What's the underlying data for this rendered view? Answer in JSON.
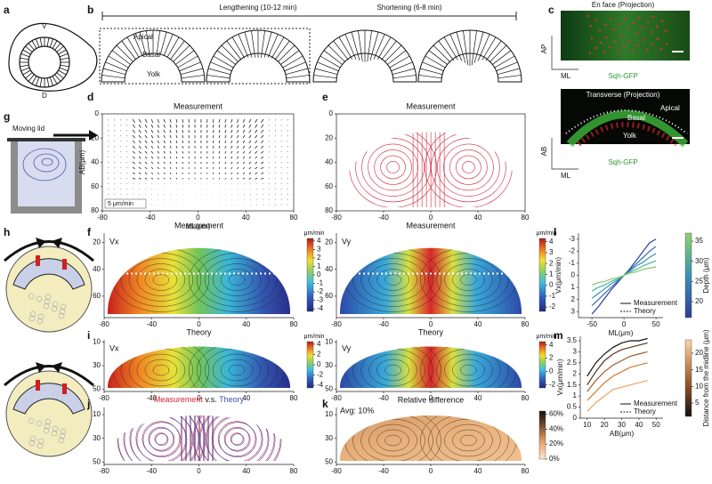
{
  "panel_labels": [
    "a",
    "b",
    "c",
    "d",
    "e",
    "f",
    "g",
    "h",
    "i",
    "j",
    "k",
    "l",
    "m"
  ],
  "a": {
    "top": "V",
    "bottom": "D"
  },
  "b": {
    "lengthening": "Lengthening (10-12 min)",
    "shortening": "Shortening (6-8 min)",
    "apical": "Apical",
    "basal": "Basal",
    "yolk": "Yolk"
  },
  "c": {
    "top_title": "En face (Projection)",
    "bottom_title": "Transverse (Projection)",
    "ap": "AP",
    "ml_top": "ML",
    "ab": "AB",
    "ml_bottom": "ML",
    "stain_top": "Sqh-GFP",
    "stain_bottom": "Sqh-GFP",
    "apical": "Apical",
    "basal": "Basal",
    "yolk": "Yolk"
  },
  "g": {
    "lid": "Moving lid"
  },
  "chart_data": [
    {
      "type": "vector_field",
      "title": "Measurement",
      "xlabel": "ML(μm)",
      "ylabel": "AB(μm)",
      "xlim": [
        -80,
        80
      ],
      "ylim": [
        0,
        80
      ],
      "y_inverted": true,
      "xticks": [
        -80,
        -40,
        0,
        40,
        80
      ],
      "yticks": [
        0,
        20,
        40,
        60,
        80
      ],
      "scale_label": "5 μm/min",
      "color": "#222222",
      "frame": true
    },
    {
      "type": "streamlines",
      "title": "Measurement",
      "xlim": [
        -80,
        80
      ],
      "ylim": [
        0,
        80
      ],
      "y_inverted": true,
      "xticks": [
        -80,
        -40,
        0,
        40,
        80
      ],
      "yticks": [
        0,
        20,
        40,
        60,
        80
      ],
      "color": "#d0243a",
      "frame": true
    },
    {
      "type": "heatmap",
      "title": "Measurement",
      "corner_label": "Vx",
      "xlim": [
        -80,
        80
      ],
      "ylim": [
        13,
        76
      ],
      "y_inverted": true,
      "xticks": [
        -80,
        -40,
        0,
        40,
        80
      ],
      "yticks": [
        20,
        40,
        60
      ],
      "colorbar": {
        "label": "μm/min",
        "lim": [
          -4.3,
          4.3
        ],
        "ticks": [
          4,
          3,
          2,
          1,
          0,
          -1,
          -2,
          -3,
          -4
        ]
      }
    },
    {
      "type": "heatmap",
      "title": "Measurement",
      "corner_label": "Vy",
      "xlim": [
        -80,
        80
      ],
      "ylim": [
        13,
        76
      ],
      "y_inverted": true,
      "xticks": [
        -80,
        -40,
        0,
        40,
        80
      ],
      "yticks": [
        20,
        40,
        60
      ],
      "colorbar": {
        "label": "μm/min",
        "lim": [
          -2.4,
          4.3
        ],
        "ticks": [
          4,
          3,
          2,
          1,
          0,
          -1,
          -2
        ]
      }
    },
    {
      "type": "heatmap",
      "title": "Theory",
      "corner_label": "Vx",
      "xlim": [
        -80,
        80
      ],
      "ylim": [
        8,
        52
      ],
      "y_inverted": true,
      "xticks": [
        -80,
        -40,
        0,
        40,
        80
      ],
      "yticks": [
        10,
        30,
        50
      ],
      "colorbar": {
        "label": "μm/min",
        "lim": [
          -4.5,
          4.5
        ],
        "ticks": [
          4,
          2,
          0,
          -2,
          -4
        ]
      }
    },
    {
      "type": "heatmap",
      "title": "Theory",
      "corner_label": "Vy",
      "xlim": [
        -80,
        80
      ],
      "ylim": [
        8,
        52
      ],
      "y_inverted": true,
      "xticks": [
        -80,
        -40,
        0,
        40,
        80
      ],
      "yticks": [
        10,
        30,
        50
      ],
      "colorbar": {
        "label": "μm/min",
        "lim": [
          -2.5,
          4.5
        ],
        "ticks": [
          4,
          2,
          0,
          -2
        ]
      }
    },
    {
      "type": "streamlines",
      "title_joiner": " v.s. ",
      "xlim": [
        -80,
        80
      ],
      "ylim": [
        4,
        52
      ],
      "y_inverted": true,
      "xticks": [
        -80,
        -40,
        0,
        40,
        80
      ],
      "yticks": [
        10,
        30,
        50
      ],
      "series": [
        {
          "name": "Measurement",
          "color": "#d0243a"
        },
        {
          "name": "Theory",
          "color": "#3b4fa8"
        }
      ]
    },
    {
      "type": "heatmap",
      "title": "Relative difference",
      "annotation": "Avg: 10%",
      "xlim": [
        -80,
        80
      ],
      "ylim": [
        4,
        52
      ],
      "y_inverted": true,
      "xticks": [
        -80,
        -40,
        0,
        40,
        80
      ],
      "yticks": [
        10,
        30,
        50
      ],
      "colorbar": {
        "lim": [
          0,
          64
        ],
        "ticks": [
          {
            "value": 60,
            "label": "60%"
          },
          {
            "value": 40,
            "label": "40%"
          },
          {
            "value": 20,
            "label": "20%"
          },
          {
            "value": 0,
            "label": "0%"
          }
        ]
      }
    },
    {
      "type": "line",
      "xlabel": "ML(μm)",
      "ylabel": "Vx(μm/min)",
      "xlim": [
        -71,
        61
      ],
      "ylim": [
        -3.5,
        3.5
      ],
      "y_inverted": true,
      "xticks": [
        -50,
        0,
        50
      ],
      "yticks": [
        -3,
        -2,
        -1,
        0,
        1,
        2,
        3
      ],
      "x": [
        -50,
        -40,
        -30,
        -20,
        -10,
        0,
        10,
        20,
        30,
        40,
        50
      ],
      "series": [
        {
          "color": "#2e3d9a",
          "values": [
            3.2,
            2.6,
            1.9,
            1.2,
            0.6,
            0,
            -0.6,
            -1.3,
            -2.0,
            -2.7,
            -3.0
          ]
        },
        {
          "color": "#3569b0",
          "values": [
            2.5,
            2.0,
            1.5,
            1.0,
            0.5,
            0,
            -0.5,
            -1.0,
            -1.5,
            -2.0,
            -2.4
          ]
        },
        {
          "color": "#3a92b4",
          "values": [
            1.9,
            1.5,
            1.1,
            0.7,
            0.4,
            0,
            -0.4,
            -0.8,
            -1.1,
            -1.5,
            -1.8
          ]
        },
        {
          "color": "#46b59a",
          "values": [
            1.3,
            1.0,
            0.8,
            0.5,
            0.3,
            0,
            -0.3,
            -0.5,
            -0.8,
            -1.0,
            -1.2
          ]
        },
        {
          "color": "#7ccb6a",
          "values": [
            0.8,
            0.6,
            0.5,
            0.3,
            0.2,
            0,
            -0.2,
            -0.3,
            -0.5,
            -0.6,
            -0.7
          ]
        }
      ],
      "legend": [
        "Measurement",
        "Theory"
      ],
      "colorbar": {
        "label": "Depth (μm)",
        "lim": [
          16,
          37
        ],
        "ticks": [
          20,
          25,
          30,
          35
        ]
      }
    },
    {
      "type": "line",
      "xlabel": "AB(μm)",
      "ylabel": "Vx(μm/min)",
      "xlim": [
        6,
        54
      ],
      "ylim": [
        0,
        3.7
      ],
      "xticks": [
        10,
        20,
        30,
        40,
        50
      ],
      "yticks": [
        0,
        0.5,
        1,
        1.5,
        2,
        2.5,
        3,
        3.5
      ],
      "x": [
        10,
        15,
        20,
        25,
        30,
        35,
        40,
        45
      ],
      "series": [
        {
          "color": "#111111",
          "values": [
            1.9,
            2.5,
            2.9,
            3.2,
            3.4,
            3.5,
            3.5,
            3.6
          ]
        },
        {
          "color": "#5a3520",
          "values": [
            1.5,
            2.1,
            2.6,
            2.9,
            3.1,
            3.2,
            3.3,
            3.4
          ]
        },
        {
          "color": "#9a5a2c",
          "values": [
            1.2,
            1.7,
            2.1,
            2.4,
            2.6,
            2.8,
            2.9,
            3.0
          ]
        },
        {
          "color": "#d07a36",
          "values": [
            0.8,
            1.2,
            1.6,
            1.9,
            2.1,
            2.3,
            2.4,
            2.5
          ]
        },
        {
          "color": "#f3a35a",
          "values": [
            0.3,
            0.7,
            1.0,
            1.3,
            1.4,
            1.5,
            1.6,
            1.7
          ]
        }
      ],
      "legend": [
        "Measurement",
        "Theory"
      ],
      "colorbar": {
        "label": "Distance from the midline (μm)",
        "lim": [
          1,
          24
        ],
        "ticks": [
          5,
          10,
          15,
          20
        ]
      }
    }
  ]
}
